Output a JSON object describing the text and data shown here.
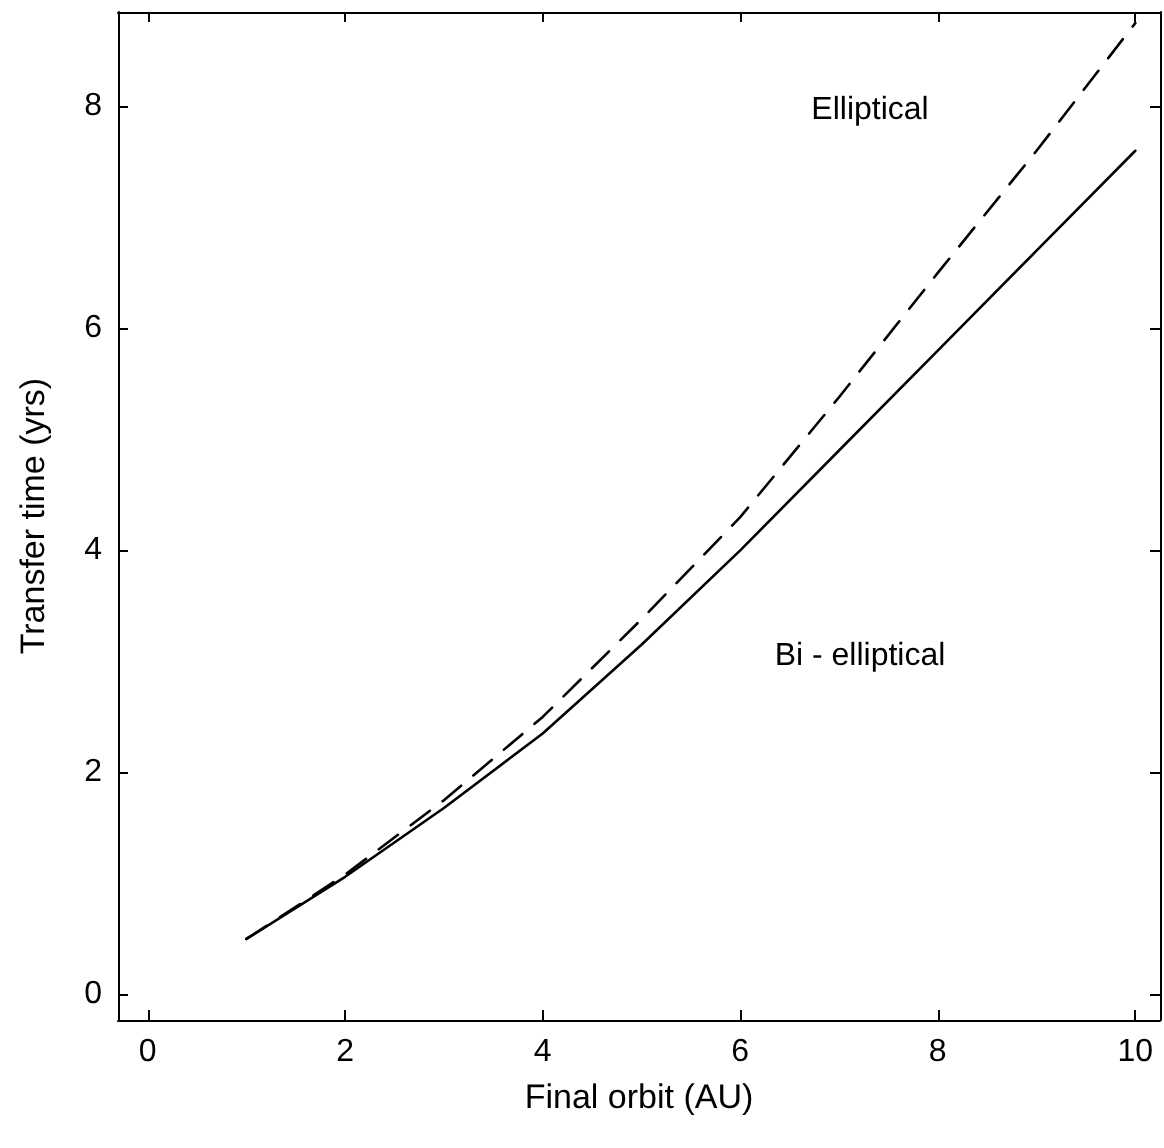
{
  "chart_data": {
    "type": "line",
    "xlabel": "Final orbit (AU)",
    "ylabel": "Transfer time (yrs)",
    "xlim": [
      -0.3,
      10.25
    ],
    "xticks": [
      0,
      2,
      4,
      6,
      8,
      10
    ],
    "ylim": [
      -0.23,
      8.85
    ],
    "yticks": [
      0,
      2,
      4,
      6,
      8
    ],
    "grid": false,
    "marker": "none",
    "series": [
      {
        "color": "#000000",
        "line_style": "solid",
        "x": [
          1,
          2,
          3,
          4,
          5,
          6,
          7,
          8,
          9,
          10
        ],
        "values": [
          0.5,
          1.06,
          1.68,
          2.35,
          3.15,
          4.0,
          4.9,
          5.8,
          6.7,
          7.6
        ]
      },
      {
        "color": "#000000",
        "line_style": "dashed",
        "x": [
          1,
          2,
          3,
          4,
          5,
          6,
          7,
          8,
          9,
          10
        ],
        "values": [
          0.5,
          1.08,
          1.75,
          2.5,
          3.38,
          4.3,
          5.38,
          6.5,
          7.6,
          8.75
        ]
      }
    ],
    "annotations": [
      "Elliptical",
      "Bi - elliptical"
    ]
  }
}
